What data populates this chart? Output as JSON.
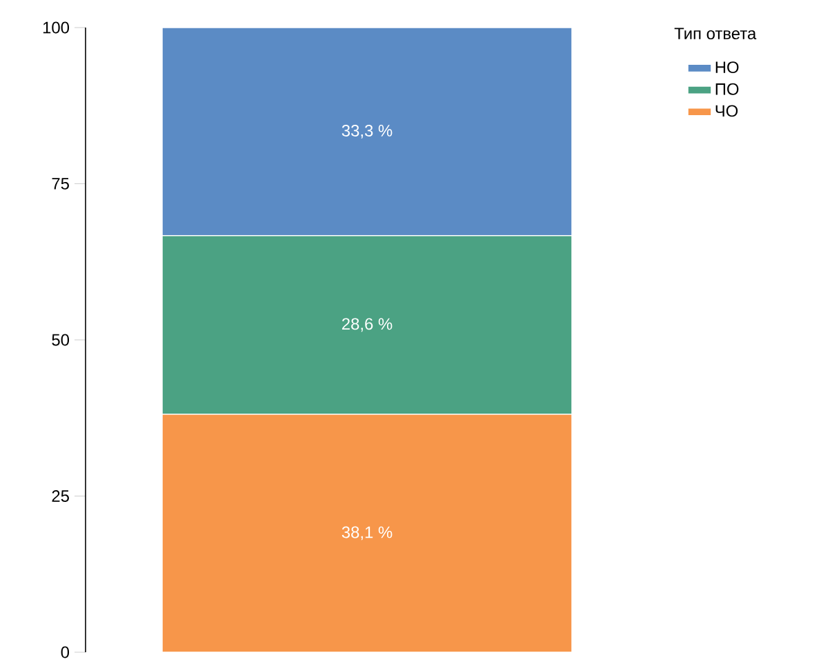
{
  "chart_data": {
    "type": "bar",
    "stacked": true,
    "categories": [
      null
    ],
    "legend_title": "Тип ответа",
    "legend": "top right",
    "series": [
      {
        "name": "ЧО",
        "color": "#f7964a",
        "values": [
          38.1
        ],
        "value_labels": [
          "38,1 %"
        ]
      },
      {
        "name": "ПО",
        "color": "#4ba283",
        "values": [
          28.6
        ],
        "value_labels": [
          "28,6 %"
        ]
      },
      {
        "name": "НО",
        "color": "#5b8bc5",
        "values": [
          33.3
        ],
        "value_labels": [
          "33,3 %"
        ]
      }
    ],
    "ylim": [
      0,
      100
    ],
    "yticks": [
      0,
      25,
      50,
      75,
      100
    ]
  }
}
